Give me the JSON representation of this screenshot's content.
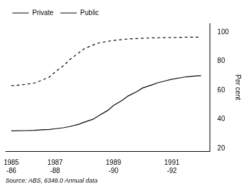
{
  "chart_data": {
    "type": "line",
    "ylabel": "Per cent",
    "annotations": [
      "Source: ABS, 6348.0 Annual data"
    ],
    "x": [
      1985.5,
      1986.0,
      1986.3,
      1986.5,
      1986.8,
      1987.0,
      1987.3,
      1987.5,
      1987.8,
      1988.0,
      1988.3,
      1988.5,
      1988.8,
      1989.0,
      1989.3,
      1989.5,
      1989.8,
      1990.0,
      1990.3,
      1990.5,
      1990.8,
      1991.0,
      1991.3,
      1991.5,
      1991.8,
      1992.0
    ],
    "series": [
      {
        "name": "Private",
        "color": "#000000",
        "line_style": "solid",
        "values": [
          32.0,
          32.2,
          32.4,
          32.7,
          33.0,
          33.5,
          34.2,
          35.0,
          36.5,
          38.0,
          40.0,
          42.5,
          46.0,
          49.5,
          53.0,
          56.0,
          59.0,
          61.5,
          63.5,
          65.0,
          66.5,
          67.5,
          68.5,
          69.2,
          69.7,
          70.0
        ]
      },
      {
        "name": "Public",
        "color": "#000000",
        "line_style": "dashed",
        "values": [
          63.0,
          64.0,
          65.0,
          66.5,
          69.0,
          72.5,
          77.0,
          81.0,
          85.5,
          88.5,
          91.0,
          92.5,
          93.5,
          94.2,
          94.8,
          95.2,
          95.5,
          95.7,
          95.9,
          96.0,
          96.1,
          96.2,
          96.3,
          96.4,
          96.4,
          96.5
        ]
      }
    ],
    "xlim": [
      1985.3,
      1992.3
    ],
    "xticks": [
      {
        "value": 1985.5,
        "label": "1985\n-86"
      },
      {
        "value": 1987.0,
        "label": "1987\n-88"
      },
      {
        "value": 1989.0,
        "label": "1989\n-90"
      },
      {
        "value": 1991.0,
        "label": "1991\n-92"
      }
    ],
    "ylim": [
      18,
      106
    ],
    "yticks": [
      20,
      40,
      60,
      80,
      100
    ],
    "grid": false,
    "legend": "upper left"
  }
}
